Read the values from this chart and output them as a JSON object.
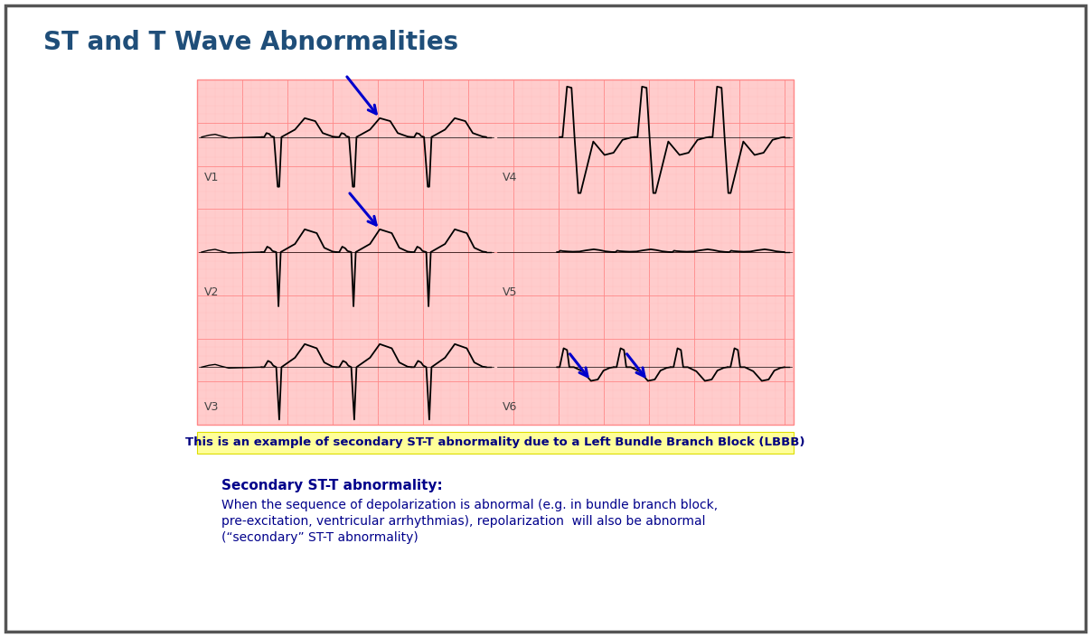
{
  "title": "ST and T Wave Abnormalities",
  "title_color": "#1F4E79",
  "title_fontsize": 20,
  "bg_color": "#FFFFFF",
  "ecg_bg_color": "#FFCCCC",
  "ecg_grid_major_color": "#FF8888",
  "ecg_grid_minor_color": "#FFBBBB",
  "caption_text": "This is an example of secondary ST-T abnormality due to a Left Bundle Branch Block (LBBB)",
  "caption_bg": "#FFFF99",
  "caption_color": "#000080",
  "body_bold": "Secondary ST-T abnormality:",
  "body_text_line1": "When the sequence of depolarization is abnormal (e.g. in bundle branch block,",
  "body_text_line2": "pre-excitation, ventricular arrhythmias), repolarization  will also be abnormal",
  "body_text_line3": "(“secondary” ST-T abnormality)",
  "body_color": "#00008B",
  "border_color": "#555555",
  "arrow_color": "#0000CC"
}
